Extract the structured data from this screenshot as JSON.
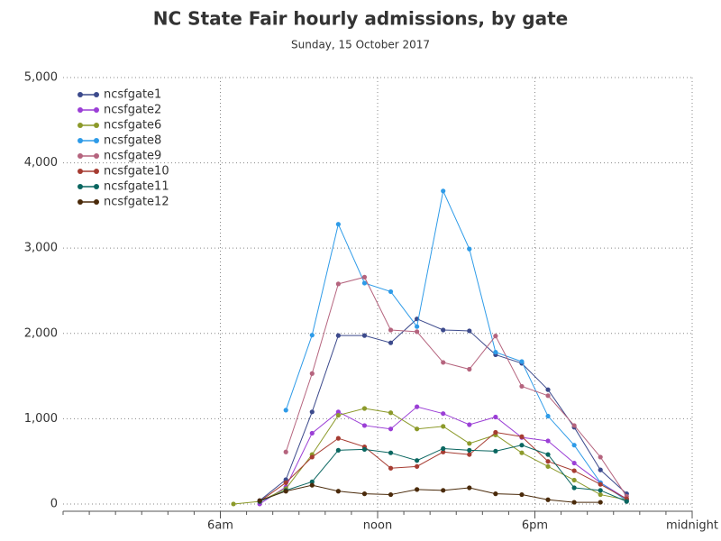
{
  "chart_data": {
    "type": "line",
    "title": "NC State Fair hourly admissions, by gate",
    "subtitle": "Sunday, 15 October 2017",
    "x": [
      6.5,
      7.5,
      8.5,
      9.5,
      10.5,
      11.5,
      12.5,
      13.5,
      14.5,
      15.5,
      16.5,
      17.5,
      18.5,
      19.5,
      20.5,
      21.5
    ],
    "xlim": [
      0,
      24
    ],
    "xticks": [
      {
        "value": 6,
        "label": "6am"
      },
      {
        "value": 12,
        "label": "noon"
      },
      {
        "value": 18,
        "label": "6pm"
      },
      {
        "value": 24,
        "label": "midnight"
      }
    ],
    "ylim": [
      -85,
      5000
    ],
    "yticks": [
      0,
      {
        "value": 1000,
        "label": "1,000"
      },
      {
        "value": 2000,
        "label": "2,000"
      },
      {
        "value": 3000,
        "label": "3,000"
      },
      {
        "value": 4000,
        "label": "4,000"
      },
      {
        "value": 5000,
        "label": "5,000"
      }
    ],
    "grid": true,
    "legend": "top-left",
    "series": [
      {
        "name": "ncsfgate1",
        "color": "#3c4a8c",
        "values": [
          null,
          40,
          285,
          1080,
          1975,
          1975,
          1890,
          2170,
          2040,
          2030,
          1750,
          1650,
          1340,
          900,
          400,
          120
        ]
      },
      {
        "name": "ncsfgate2",
        "color": "#9b3fd6",
        "values": [
          null,
          0,
          200,
          830,
          1080,
          920,
          880,
          1140,
          1060,
          930,
          1020,
          780,
          740,
          480,
          250,
          60
        ]
      },
      {
        "name": "ncsfgate6",
        "color": "#8c9a2a",
        "values": [
          0,
          30,
          180,
          580,
          1040,
          1120,
          1070,
          880,
          910,
          710,
          810,
          600,
          440,
          280,
          110,
          50
        ]
      },
      {
        "name": "ncsfgate8",
        "color": "#2e9be8",
        "values": [
          null,
          null,
          1100,
          1980,
          3280,
          2590,
          2490,
          2080,
          3670,
          2990,
          1780,
          1670,
          1030,
          690,
          250,
          40
        ]
      },
      {
        "name": "ncsfgate9",
        "color": "#b5647e",
        "values": [
          null,
          null,
          610,
          1530,
          2580,
          2660,
          2040,
          2020,
          1660,
          1580,
          1970,
          1380,
          1270,
          920,
          550,
          90
        ]
      },
      {
        "name": "ncsfgate10",
        "color": "#a63c32",
        "values": [
          null,
          30,
          250,
          550,
          770,
          670,
          420,
          440,
          610,
          580,
          840,
          790,
          500,
          390,
          230,
          60
        ]
      },
      {
        "name": "ncsfgate11",
        "color": "#0a6660",
        "values": [
          null,
          30,
          160,
          260,
          630,
          640,
          600,
          510,
          650,
          630,
          620,
          690,
          580,
          190,
          160,
          30
        ]
      },
      {
        "name": "ncsfgate12",
        "color": "#4a2a0a",
        "values": [
          null,
          40,
          150,
          220,
          150,
          120,
          110,
          170,
          160,
          190,
          120,
          110,
          50,
          20,
          20,
          null
        ]
      }
    ]
  }
}
